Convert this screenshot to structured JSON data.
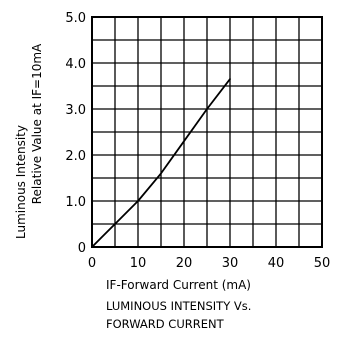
{
  "chart_data": {
    "type": "line",
    "x_ticks": [
      "0",
      "10",
      "20",
      "30",
      "40",
      "50"
    ],
    "y_ticks": [
      "0",
      "1.0",
      "2.0",
      "3.0",
      "4.0",
      "5.0"
    ],
    "xlim": [
      0,
      50
    ],
    "ylim": [
      0,
      5
    ],
    "grid": true,
    "grid_step": {
      "x": 5,
      "y": 0.5
    },
    "xlabel": "IF-Forward Current (mA)",
    "ylabel": [
      "Luminous Intensity",
      "Relative Value at IF=10mA"
    ],
    "caption": [
      "LUMINOUS INTENSITY Vs.",
      "FORWARD CURRENT"
    ],
    "series": [
      {
        "x": [
          0,
          2,
          5,
          10,
          15,
          20,
          25,
          30
        ],
        "y": [
          0,
          0.2,
          0.5,
          1.0,
          1.6,
          2.3,
          3.0,
          3.65
        ]
      }
    ],
    "colors": {
      "line": "#000000",
      "grid": "#000000"
    }
  }
}
